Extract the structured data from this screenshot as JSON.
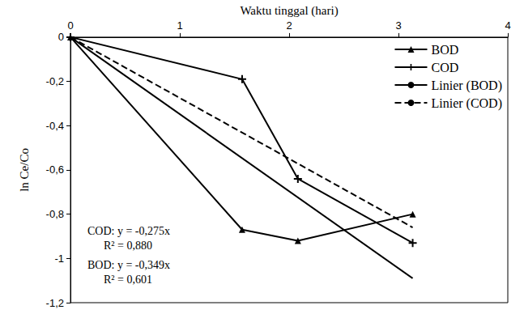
{
  "chart_data": {
    "type": "line",
    "x_label": "Waktu tinggal (hari)",
    "y_label": "ln Ce/Co",
    "xlim": [
      0,
      4
    ],
    "xticks": [
      0,
      1,
      2,
      3,
      4
    ],
    "ylim": [
      -1.2,
      0
    ],
    "yticks": [
      0,
      {
        "value": -0.2,
        "label": "-0,2"
      },
      {
        "value": -0.4,
        "label": "-0,4"
      },
      {
        "value": -0.6,
        "label": "-0,6"
      },
      {
        "value": -0.8,
        "label": "-0,8"
      },
      -1,
      {
        "value": -1.2,
        "label": "-1,2"
      }
    ],
    "grid": false,
    "legend": "upper right",
    "series": [
      {
        "name": "BOD",
        "color": "#000000",
        "marker": "triangle",
        "line_style": "solid",
        "x": [
          0,
          1.57,
          2.08,
          3.13
        ],
        "values": [
          0,
          -0.87,
          -0.92,
          -0.8
        ]
      },
      {
        "name": "COD",
        "color": "#000000",
        "marker": "plus",
        "line_style": "solid",
        "x": [
          0,
          1.57,
          2.08,
          3.13
        ],
        "values": [
          0,
          -0.19,
          -0.64,
          -0.93
        ]
      },
      {
        "name": "Linier (BOD)",
        "color": "#000000",
        "marker": "none",
        "line_style": "solid",
        "x": [
          0,
          3.13
        ],
        "values": [
          0,
          -1.09
        ]
      },
      {
        "name": "Linier (COD)",
        "color": "#000000",
        "marker": "none",
        "line_style": "dashed",
        "x": [
          0,
          3.13
        ],
        "values": [
          0,
          -0.86
        ]
      }
    ],
    "annotations": [
      "COD: y = -0,275x",
      "R² = 0,880",
      "BOD: y = -0,349x",
      "R² = 0,601"
    ]
  }
}
